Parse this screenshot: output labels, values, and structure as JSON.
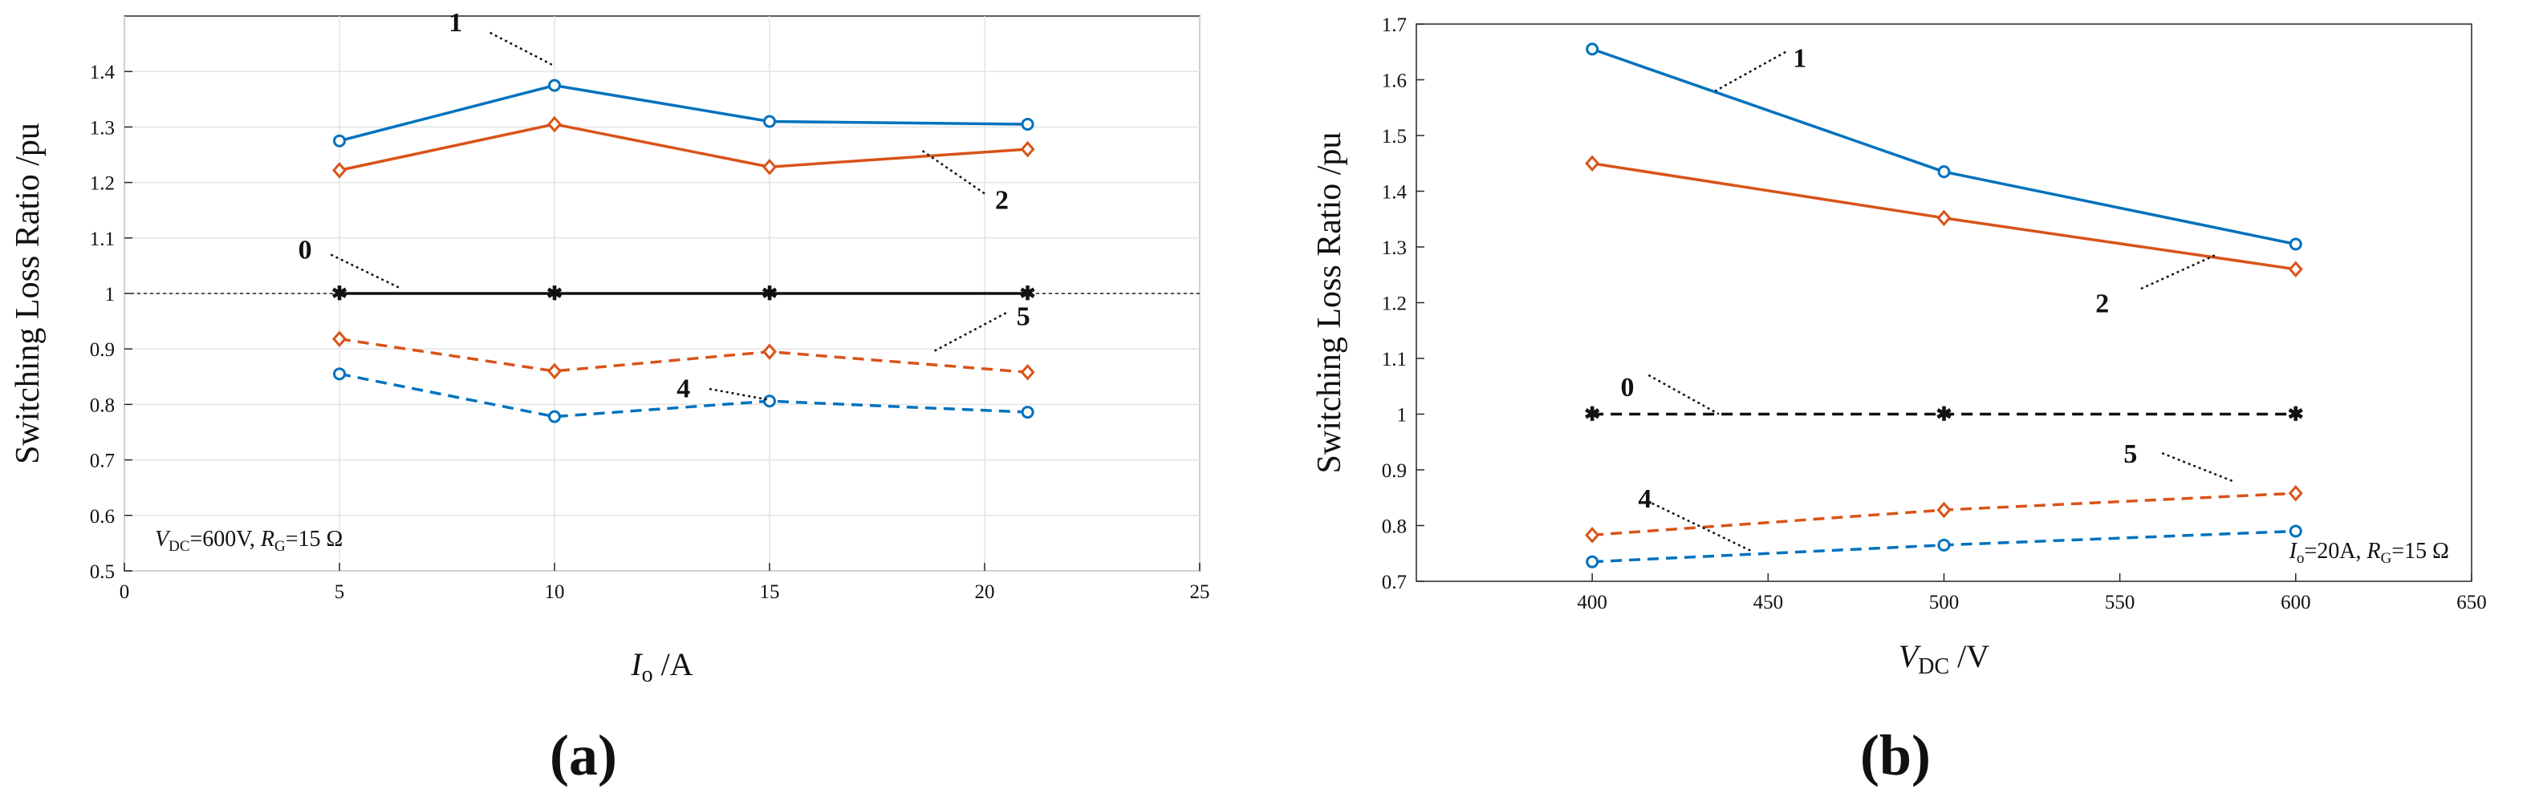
{
  "chart_data": [
    {
      "type": "line",
      "panel_label": "(a)",
      "xlabel": {
        "main": "I",
        "sub": "o",
        "unit": " /A"
      },
      "ylabel": "Switching Loss Ratio  /pu",
      "xlim": [
        0,
        25
      ],
      "ylim": [
        0.5,
        1.5
      ],
      "x_ticks": [
        0,
        5,
        10,
        15,
        20,
        25
      ],
      "y_ticks": [
        0.5,
        0.6,
        0.7,
        0.8,
        0.9,
        1,
        1.1,
        1.2,
        1.3,
        1.4
      ],
      "x_tick_labels": [
        "0",
        "5",
        "10",
        "15",
        "20",
        "25"
      ],
      "y_tick_labels": [
        "0.5",
        "0.6",
        "0.7",
        "0.8",
        "0.9",
        "1",
        "1.1",
        "1.2",
        "1.3",
        "1.4"
      ],
      "grid": true,
      "reference_line": 1,
      "condition": {
        "v1": "V",
        "v1_sub": "DC",
        "v1_val": "=600V, ",
        "v2": "R",
        "v2_sub": "G",
        "v2_val": "=15 Ω"
      },
      "series": [
        {
          "name": "1",
          "color": "#0072BD",
          "dash": "solid",
          "marker": "circle",
          "x": [
            5,
            10,
            15,
            21
          ],
          "values": [
            1.275,
            1.375,
            1.31,
            1.305
          ]
        },
        {
          "name": "2",
          "color": "#D95319",
          "dash": "solid",
          "marker": "diamond",
          "x": [
            5,
            10,
            15,
            21
          ],
          "values": [
            1.222,
            1.305,
            1.228,
            1.26
          ]
        },
        {
          "name": "0",
          "color": "#111111",
          "dash": "solid",
          "marker": "star",
          "x": [
            5,
            10,
            15,
            21
          ],
          "values": [
            1.0,
            1.0,
            1.0,
            1.0
          ]
        },
        {
          "name": "5",
          "color": "#D95319",
          "dash": "dashed",
          "marker": "diamond",
          "x": [
            5,
            10,
            15,
            21
          ],
          "values": [
            0.918,
            0.86,
            0.895,
            0.858
          ]
        },
        {
          "name": "4",
          "color": "#0072BD",
          "dash": "dashed",
          "marker": "circle",
          "x": [
            5,
            10,
            15,
            21
          ],
          "values": [
            0.855,
            0.778,
            0.806,
            0.786
          ]
        }
      ],
      "annotations": [
        {
          "text": "1",
          "tx": 7.7,
          "ty": 1.49,
          "x1": 8.5,
          "y1": 1.47,
          "x2": 10.0,
          "y2": 1.41
        },
        {
          "text": "2",
          "tx": 20.4,
          "ty": 1.17,
          "x1": 20.0,
          "y1": 1.18,
          "x2": 18.5,
          "y2": 1.26
        },
        {
          "text": "0",
          "tx": 4.2,
          "ty": 1.08,
          "x1": 4.8,
          "y1": 1.07,
          "x2": 6.4,
          "y2": 1.01
        },
        {
          "text": "5",
          "tx": 20.9,
          "ty": 0.96,
          "x1": 20.5,
          "y1": 0.965,
          "x2": 18.8,
          "y2": 0.895
        },
        {
          "text": "4",
          "tx": 13.0,
          "ty": 0.83,
          "x1": 13.6,
          "y1": 0.828,
          "x2": 15.0,
          "y2": 0.808
        }
      ]
    },
    {
      "type": "line",
      "panel_label": "(b)",
      "xlabel": {
        "main": "V",
        "sub": "DC",
        "unit": " /V"
      },
      "ylabel": "Switching Loss Ratio  /pu",
      "xlim": [
        350,
        650
      ],
      "ylim": [
        0.7,
        1.7
      ],
      "x_ticks": [
        400,
        450,
        500,
        550,
        600,
        650
      ],
      "y_ticks": [
        0.7,
        0.8,
        0.9,
        1,
        1.1,
        1.2,
        1.3,
        1.4,
        1.5,
        1.6,
        1.7
      ],
      "x_tick_labels": [
        "400",
        "450",
        "500",
        "550",
        "600",
        "650"
      ],
      "y_tick_labels": [
        "0.7",
        "0.8",
        "0.9",
        "1",
        "1.1",
        "1.2",
        "1.3",
        "1.4",
        "1.5",
        "1.6",
        "1.7"
      ],
      "grid": false,
      "reference_line": null,
      "condition": {
        "v1": "I",
        "v1_sub": "o",
        "v1_val": "=20A, ",
        "v2": "R",
        "v2_sub": "G",
        "v2_val": "=15 Ω"
      },
      "series": [
        {
          "name": "1",
          "color": "#0072BD",
          "dash": "solid",
          "marker": "circle",
          "x": [
            400,
            500,
            600
          ],
          "values": [
            1.655,
            1.435,
            1.305
          ]
        },
        {
          "name": "2",
          "color": "#D95319",
          "dash": "solid",
          "marker": "diamond",
          "x": [
            400,
            500,
            600
          ],
          "values": [
            1.45,
            1.352,
            1.26
          ]
        },
        {
          "name": "0",
          "color": "#111111",
          "dash": "dashed",
          "marker": "star",
          "x": [
            400,
            500,
            600
          ],
          "values": [
            1.0,
            1.0,
            1.0
          ]
        },
        {
          "name": "5",
          "color": "#D95319",
          "dash": "dashed",
          "marker": "diamond",
          "x": [
            400,
            500,
            600
          ],
          "values": [
            0.783,
            0.828,
            0.858
          ]
        },
        {
          "name": "4",
          "color": "#0072BD",
          "dash": "dashed",
          "marker": "circle",
          "x": [
            400,
            500,
            600
          ],
          "values": [
            0.735,
            0.765,
            0.79
          ]
        }
      ],
      "annotations": [
        {
          "text": "1",
          "tx": 459,
          "ty": 1.64,
          "x1": 455,
          "y1": 1.65,
          "x2": 435,
          "y2": 1.58
        },
        {
          "text": "2",
          "tx": 545,
          "ty": 1.2,
          "x1": 556,
          "y1": 1.225,
          "x2": 577,
          "y2": 1.285
        },
        {
          "text": "0",
          "tx": 410,
          "ty": 1.05,
          "x1": 416,
          "y1": 1.07,
          "x2": 436,
          "y2": 1.0
        },
        {
          "text": "5",
          "tx": 553,
          "ty": 0.93,
          "x1": 562,
          "y1": 0.93,
          "x2": 582,
          "y2": 0.88
        },
        {
          "text": "4",
          "tx": 415,
          "ty": 0.85,
          "x1": 417,
          "y1": 0.84,
          "x2": 445,
          "y2": 0.755
        }
      ]
    }
  ]
}
